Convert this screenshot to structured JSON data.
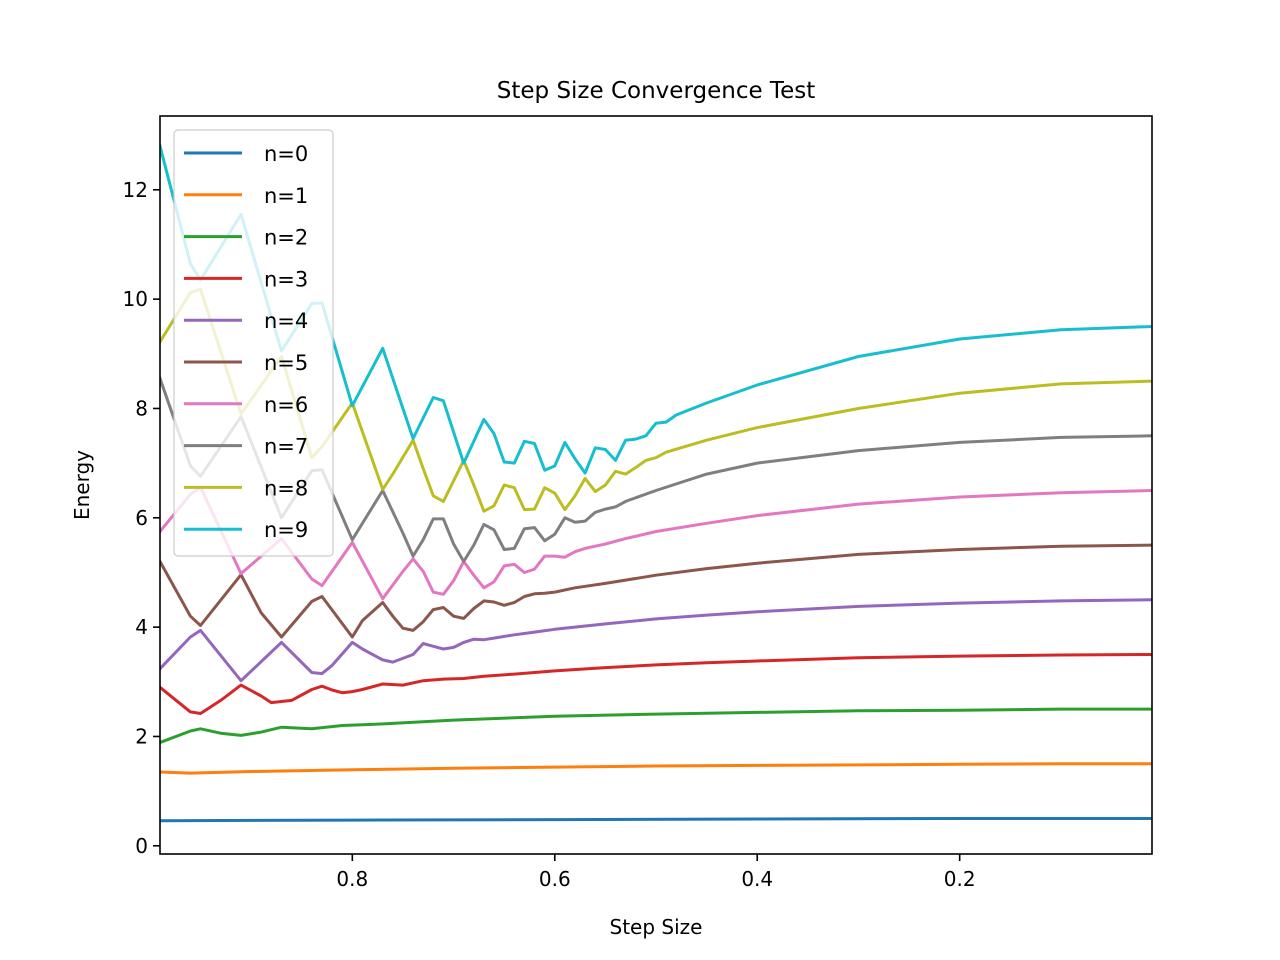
{
  "chart_data": {
    "type": "line",
    "title": "Step Size Convergence Test",
    "xlabel": "Step Size",
    "ylabel": "Energy",
    "xlim": [
      0.99,
      0.01
    ],
    "ylim": [
      -0.15,
      13.35
    ],
    "x_inverted": true,
    "xticks": [
      0.8,
      0.6,
      0.4,
      0.2
    ],
    "xtick_labels": [
      "0.8",
      "0.6",
      "0.4",
      "0.2"
    ],
    "yticks": [
      0,
      2,
      4,
      6,
      8,
      10,
      12
    ],
    "ytick_labels": [
      "0",
      "2",
      "4",
      "6",
      "8",
      "10",
      "12"
    ],
    "grid": false,
    "legend_position": "upper-left",
    "series": [
      {
        "name": "n=0",
        "color": "#1f77b4",
        "x": [
          0.99,
          0.8,
          0.6,
          0.4,
          0.2,
          0.01
        ],
        "y": [
          0.46,
          0.47,
          0.48,
          0.49,
          0.5,
          0.5
        ]
      },
      {
        "name": "n=1",
        "color": "#ff7f0e",
        "x": [
          0.99,
          0.96,
          0.9,
          0.8,
          0.7,
          0.6,
          0.5,
          0.4,
          0.3,
          0.2,
          0.1,
          0.01
        ],
        "y": [
          1.35,
          1.33,
          1.36,
          1.39,
          1.42,
          1.44,
          1.46,
          1.47,
          1.48,
          1.49,
          1.5,
          1.5
        ]
      },
      {
        "name": "n=2",
        "color": "#2ca02c",
        "x": [
          0.99,
          0.96,
          0.95,
          0.93,
          0.91,
          0.89,
          0.87,
          0.84,
          0.81,
          0.78,
          0.7,
          0.6,
          0.5,
          0.4,
          0.3,
          0.2,
          0.1,
          0.01
        ],
        "y": [
          1.89,
          2.1,
          2.14,
          2.06,
          2.02,
          2.08,
          2.17,
          2.14,
          2.2,
          2.22,
          2.3,
          2.37,
          2.41,
          2.44,
          2.47,
          2.48,
          2.5,
          2.5
        ]
      },
      {
        "name": "n=3",
        "color": "#d62728",
        "x": [
          0.99,
          0.97,
          0.96,
          0.95,
          0.93,
          0.91,
          0.89,
          0.88,
          0.86,
          0.84,
          0.83,
          0.82,
          0.81,
          0.8,
          0.79,
          0.77,
          0.75,
          0.73,
          0.71,
          0.69,
          0.67,
          0.64,
          0.6,
          0.55,
          0.5,
          0.45,
          0.4,
          0.3,
          0.2,
          0.1,
          0.01
        ],
        "y": [
          2.9,
          2.6,
          2.45,
          2.42,
          2.66,
          2.94,
          2.74,
          2.62,
          2.66,
          2.86,
          2.92,
          2.85,
          2.8,
          2.82,
          2.86,
          2.96,
          2.94,
          3.02,
          3.05,
          3.06,
          3.1,
          3.14,
          3.2,
          3.26,
          3.31,
          3.35,
          3.38,
          3.44,
          3.47,
          3.49,
          3.5
        ]
      },
      {
        "name": "n=4",
        "color": "#9467bd",
        "x": [
          0.99,
          0.96,
          0.95,
          0.91,
          0.87,
          0.84,
          0.83,
          0.82,
          0.8,
          0.79,
          0.77,
          0.76,
          0.74,
          0.73,
          0.72,
          0.71,
          0.7,
          0.69,
          0.68,
          0.67,
          0.66,
          0.64,
          0.62,
          0.6,
          0.55,
          0.5,
          0.45,
          0.4,
          0.3,
          0.2,
          0.1,
          0.01
        ],
        "y": [
          3.24,
          3.82,
          3.94,
          3.02,
          3.72,
          3.17,
          3.15,
          3.3,
          3.72,
          3.6,
          3.4,
          3.36,
          3.5,
          3.7,
          3.65,
          3.6,
          3.63,
          3.72,
          3.78,
          3.77,
          3.8,
          3.86,
          3.91,
          3.96,
          4.06,
          4.15,
          4.22,
          4.28,
          4.38,
          4.44,
          4.48,
          4.5
        ]
      },
      {
        "name": "n=5",
        "color": "#8c564b",
        "x": [
          0.99,
          0.96,
          0.95,
          0.91,
          0.89,
          0.87,
          0.84,
          0.83,
          0.8,
          0.79,
          0.77,
          0.76,
          0.75,
          0.74,
          0.73,
          0.72,
          0.71,
          0.7,
          0.69,
          0.68,
          0.67,
          0.66,
          0.65,
          0.64,
          0.63,
          0.62,
          0.61,
          0.6,
          0.58,
          0.55,
          0.5,
          0.45,
          0.4,
          0.3,
          0.2,
          0.1,
          0.01
        ],
        "y": [
          5.2,
          4.2,
          4.03,
          4.96,
          4.26,
          3.82,
          4.47,
          4.56,
          3.82,
          4.12,
          4.45,
          4.2,
          3.98,
          3.94,
          4.1,
          4.32,
          4.36,
          4.2,
          4.16,
          4.34,
          4.48,
          4.46,
          4.4,
          4.45,
          4.56,
          4.61,
          4.62,
          4.64,
          4.72,
          4.8,
          4.95,
          5.07,
          5.17,
          5.33,
          5.42,
          5.48,
          5.5
        ]
      },
      {
        "name": "n=6",
        "color": "#e377c2",
        "x": [
          0.99,
          0.96,
          0.95,
          0.91,
          0.87,
          0.84,
          0.83,
          0.8,
          0.77,
          0.75,
          0.74,
          0.73,
          0.72,
          0.71,
          0.7,
          0.69,
          0.68,
          0.67,
          0.66,
          0.65,
          0.64,
          0.63,
          0.62,
          0.61,
          0.6,
          0.59,
          0.58,
          0.57,
          0.56,
          0.55,
          0.53,
          0.5,
          0.45,
          0.4,
          0.3,
          0.2,
          0.1,
          0.01
        ],
        "y": [
          5.75,
          6.43,
          6.56,
          4.98,
          5.62,
          4.88,
          4.76,
          5.55,
          4.52,
          5.02,
          5.25,
          5.02,
          4.64,
          4.6,
          4.85,
          5.2,
          4.95,
          4.72,
          4.83,
          5.12,
          5.15,
          5.0,
          5.06,
          5.3,
          5.3,
          5.28,
          5.38,
          5.44,
          5.48,
          5.52,
          5.62,
          5.75,
          5.9,
          6.04,
          6.25,
          6.38,
          6.46,
          6.5
        ]
      },
      {
        "name": "n=7",
        "color": "#7f7f7f",
        "x": [
          0.99,
          0.96,
          0.95,
          0.91,
          0.87,
          0.84,
          0.83,
          0.8,
          0.77,
          0.75,
          0.74,
          0.73,
          0.72,
          0.71,
          0.7,
          0.69,
          0.68,
          0.67,
          0.66,
          0.65,
          0.64,
          0.63,
          0.62,
          0.61,
          0.6,
          0.59,
          0.58,
          0.57,
          0.56,
          0.55,
          0.54,
          0.53,
          0.5,
          0.45,
          0.4,
          0.3,
          0.2,
          0.1,
          0.01
        ],
        "y": [
          8.55,
          6.95,
          6.76,
          7.85,
          6.0,
          6.86,
          6.88,
          5.6,
          6.5,
          5.72,
          5.3,
          5.6,
          5.98,
          5.98,
          5.52,
          5.2,
          5.5,
          5.88,
          5.78,
          5.42,
          5.44,
          5.8,
          5.82,
          5.58,
          5.7,
          6.0,
          5.92,
          5.94,
          6.1,
          6.16,
          6.2,
          6.3,
          6.5,
          6.8,
          7.0,
          7.23,
          7.38,
          7.47,
          7.5
        ]
      },
      {
        "name": "n=8",
        "color": "#bcbd22",
        "x": [
          0.99,
          0.96,
          0.95,
          0.91,
          0.87,
          0.84,
          0.83,
          0.8,
          0.77,
          0.76,
          0.74,
          0.73,
          0.72,
          0.71,
          0.69,
          0.68,
          0.67,
          0.66,
          0.65,
          0.64,
          0.63,
          0.62,
          0.61,
          0.6,
          0.59,
          0.58,
          0.57,
          0.56,
          0.55,
          0.54,
          0.53,
          0.52,
          0.51,
          0.5,
          0.49,
          0.45,
          0.4,
          0.3,
          0.2,
          0.1,
          0.01
        ],
        "y": [
          9.22,
          10.12,
          10.18,
          7.9,
          8.95,
          7.1,
          7.3,
          8.1,
          6.52,
          6.8,
          7.42,
          6.9,
          6.4,
          6.3,
          7.05,
          6.6,
          6.12,
          6.22,
          6.6,
          6.55,
          6.15,
          6.16,
          6.55,
          6.45,
          6.15,
          6.4,
          6.72,
          6.48,
          6.6,
          6.85,
          6.8,
          6.92,
          7.05,
          7.1,
          7.2,
          7.42,
          7.65,
          8.0,
          8.28,
          8.45,
          8.5
        ]
      },
      {
        "name": "n=9",
        "color": "#17becf",
        "x": [
          0.99,
          0.96,
          0.95,
          0.91,
          0.87,
          0.84,
          0.83,
          0.8,
          0.77,
          0.75,
          0.74,
          0.72,
          0.71,
          0.69,
          0.67,
          0.66,
          0.65,
          0.64,
          0.63,
          0.62,
          0.61,
          0.6,
          0.59,
          0.58,
          0.57,
          0.56,
          0.55,
          0.54,
          0.53,
          0.52,
          0.51,
          0.5,
          0.49,
          0.48,
          0.45,
          0.4,
          0.3,
          0.2,
          0.1,
          0.01
        ],
        "y": [
          12.8,
          10.65,
          10.35,
          11.55,
          9.05,
          9.92,
          9.93,
          8.05,
          9.1,
          8.0,
          7.45,
          8.2,
          8.14,
          7.0,
          7.8,
          7.54,
          7.02,
          7.0,
          7.4,
          7.36,
          6.87,
          6.95,
          7.38,
          7.08,
          6.82,
          7.28,
          7.25,
          7.05,
          7.42,
          7.44,
          7.5,
          7.73,
          7.75,
          7.88,
          8.1,
          8.43,
          8.95,
          9.27,
          9.44,
          9.5
        ]
      }
    ]
  }
}
